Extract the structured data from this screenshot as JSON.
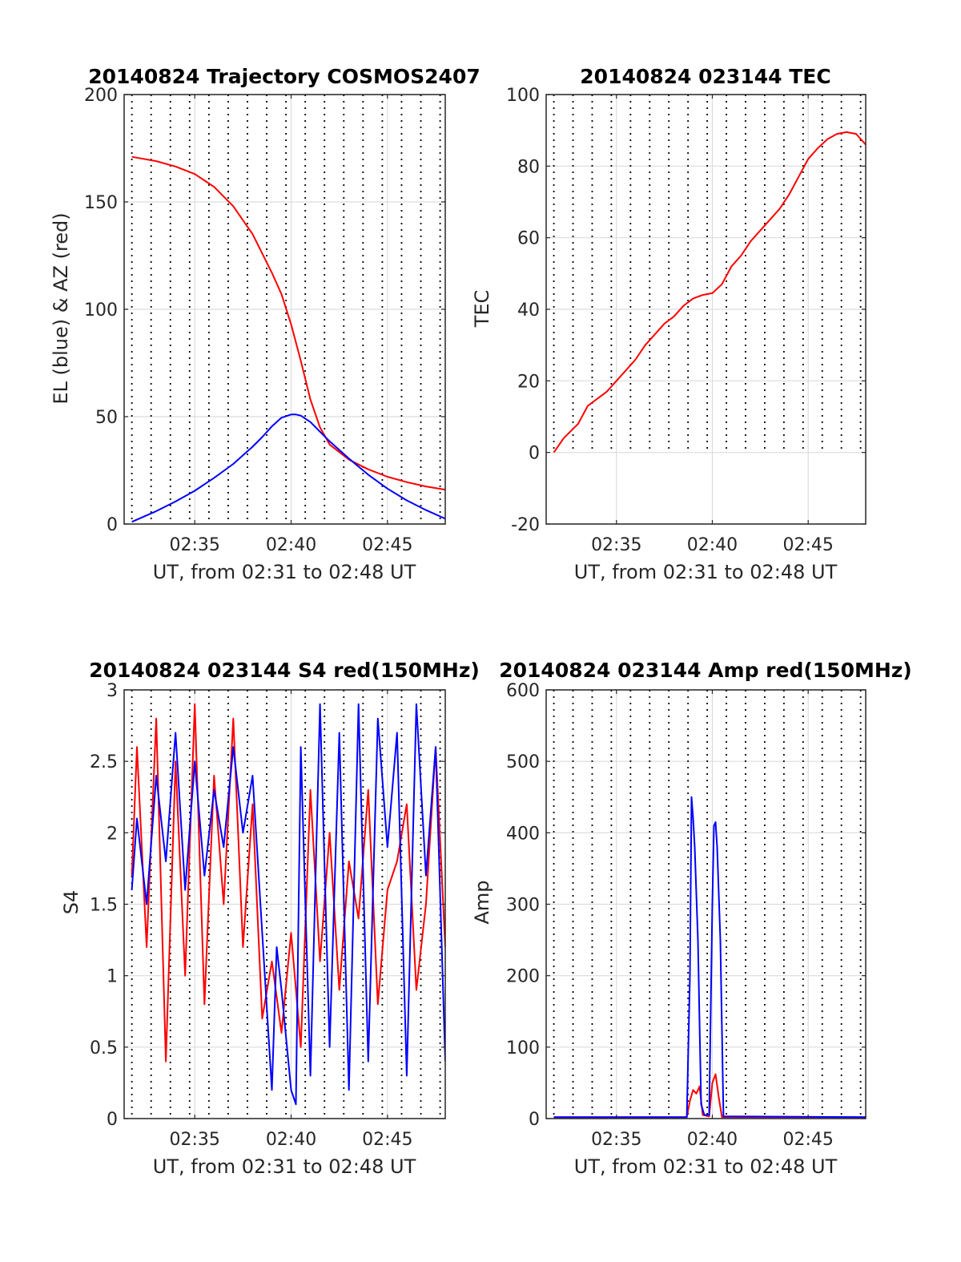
{
  "figure": {
    "background": "#ffffff"
  },
  "chart_data": [
    {
      "id": "trajectory",
      "type": "line",
      "title": "20140824 Trajectory COSMOS2407",
      "xlabel": "UT, from 02:31 to 02:48 UT",
      "ylabel": "EL (blue) & AZ (red)",
      "xlim": [
        "02:31:20",
        "02:48:00"
      ],
      "ylim": [
        0,
        200
      ],
      "yticks": [
        0,
        50,
        100,
        150,
        200
      ],
      "yticklabels": [
        "0",
        "50",
        "100",
        "150",
        "200"
      ],
      "xticks": [
        "02:35",
        "02:40",
        "02:45"
      ],
      "vlines": [
        "02:31:44",
        "02:32:44",
        "02:33:44",
        "02:34:44",
        "02:35:44",
        "02:36:44",
        "02:37:44",
        "02:38:44",
        "02:39:44",
        "02:40:44",
        "02:41:44",
        "02:42:44",
        "02:43:44",
        "02:44:44",
        "02:45:44",
        "02:46:44",
        "02:47:44"
      ],
      "grid": true,
      "series": [
        {
          "color": "#ff0000",
          "x": [
            "02:31:44",
            "02:33:00",
            "02:34:00",
            "02:35:00",
            "02:36:00",
            "02:37:00",
            "02:38:00",
            "02:39:00",
            "02:39:30",
            "02:40:00",
            "02:40:30",
            "02:41:00",
            "02:41:30",
            "02:42:00",
            "02:43:00",
            "02:44:00",
            "02:45:00",
            "02:46:00",
            "02:47:00",
            "02:48:00"
          ],
          "y": [
            171,
            169,
            166.5,
            163,
            157,
            148,
            135,
            117,
            107,
            93,
            76,
            58,
            45,
            37,
            30,
            25.5,
            22,
            19.5,
            17.5,
            16
          ]
        },
        {
          "color": "#0000ff",
          "x": [
            "02:31:44",
            "02:33:00",
            "02:34:00",
            "02:35:00",
            "02:36:00",
            "02:37:00",
            "02:38:00",
            "02:38:30",
            "02:39:00",
            "02:39:30",
            "02:40:00",
            "02:40:15",
            "02:40:30",
            "02:41:00",
            "02:41:30",
            "02:42:00",
            "02:43:00",
            "02:44:00",
            "02:45:00",
            "02:46:00",
            "02:47:00",
            "02:48:00"
          ],
          "y": [
            1,
            6,
            10.5,
            15.5,
            21.5,
            28,
            36,
            40.5,
            45.5,
            49.5,
            51,
            51,
            50.5,
            47.5,
            43,
            38.5,
            30.5,
            23,
            16.5,
            11,
            6.5,
            2.5
          ]
        }
      ]
    },
    {
      "id": "tec",
      "type": "line",
      "title": "20140824 023144 TEC",
      "xlabel": "UT, from 02:31 to 02:48 UT",
      "ylabel": "TEC",
      "xlim": [
        "02:31:20",
        "02:48:00"
      ],
      "ylim": [
        -20,
        100
      ],
      "yticks": [
        -20,
        0,
        20,
        40,
        60,
        80,
        100
      ],
      "yticklabels": [
        "-20",
        "0",
        "20",
        "40",
        "60",
        "80",
        "100"
      ],
      "xticks": [
        "02:35",
        "02:40",
        "02:45"
      ],
      "vlines": [
        "02:31:44",
        "02:32:44",
        "02:33:44",
        "02:34:44",
        "02:35:44",
        "02:36:44",
        "02:37:44",
        "02:38:44",
        "02:39:44",
        "02:40:44",
        "02:41:44",
        "02:42:44",
        "02:43:44",
        "02:44:44",
        "02:45:44",
        "02:46:44",
        "02:47:44"
      ],
      "vline_ymin": 0,
      "grid": true,
      "series": [
        {
          "color": "#ff0000",
          "x": [
            "02:31:44",
            "02:32:15",
            "02:33:00",
            "02:33:30",
            "02:34:00",
            "02:34:30",
            "02:35:00",
            "02:35:30",
            "02:36:00",
            "02:36:30",
            "02:37:00",
            "02:37:30",
            "02:38:00",
            "02:38:30",
            "02:39:00",
            "02:39:30",
            "02:40:00",
            "02:40:30",
            "02:41:00",
            "02:41:30",
            "02:42:00",
            "02:42:30",
            "02:43:00",
            "02:43:30",
            "02:44:00",
            "02:44:30",
            "02:45:00",
            "02:45:30",
            "02:46:00",
            "02:46:30",
            "02:47:00",
            "02:47:30",
            "02:48:00"
          ],
          "y": [
            0,
            4,
            8,
            13,
            15,
            17,
            20,
            23,
            26,
            30,
            33,
            36,
            38,
            41,
            43,
            44,
            44.5,
            47,
            52,
            55,
            59,
            62,
            65,
            68,
            72,
            77,
            82,
            85,
            87.5,
            89,
            89.5,
            89,
            86
          ]
        }
      ]
    },
    {
      "id": "s4",
      "type": "line",
      "title": "20140824 023144 S4 red(150MHz)",
      "xlabel": "UT, from 02:31 to 02:48 UT",
      "ylabel": "S4",
      "xlim": [
        "02:31:20",
        "02:48:00"
      ],
      "ylim": [
        0,
        3
      ],
      "yticks": [
        0,
        0.5,
        1,
        1.5,
        2,
        2.5,
        3
      ],
      "yticklabels": [
        "0",
        "0.5",
        "1",
        "1.5",
        "2",
        "2.5",
        "3"
      ],
      "xticks": [
        "02:35",
        "02:40",
        "02:45"
      ],
      "vlines": [
        "02:31:44",
        "02:32:44",
        "02:33:44",
        "02:34:44",
        "02:35:44",
        "02:36:44",
        "02:37:44",
        "02:38:44",
        "02:39:44",
        "02:40:44",
        "02:41:44",
        "02:42:44",
        "02:43:44",
        "02:44:44",
        "02:45:44",
        "02:46:44",
        "02:47:44"
      ],
      "grid": true,
      "series": [
        {
          "color": "#ff0000",
          "x": [
            "02:31:44",
            "02:32:00",
            "02:32:30",
            "02:33:00",
            "02:33:30",
            "02:34:00",
            "02:34:30",
            "02:35:00",
            "02:35:30",
            "02:36:00",
            "02:36:30",
            "02:37:00",
            "02:37:30",
            "02:38:00",
            "02:38:30",
            "02:39:00",
            "02:39:30",
            "02:40:00",
            "02:40:30",
            "02:41:00",
            "02:41:30",
            "02:42:00",
            "02:42:30",
            "02:43:00",
            "02:43:30",
            "02:44:00",
            "02:44:30",
            "02:45:00",
            "02:45:30",
            "02:46:00",
            "02:46:30",
            "02:47:00",
            "02:47:30",
            "02:48:00"
          ],
          "y": [
            1.7,
            2.6,
            1.2,
            2.8,
            0.4,
            2.5,
            1.0,
            2.9,
            0.8,
            2.4,
            1.5,
            2.8,
            1.2,
            2.2,
            0.7,
            1.1,
            0.6,
            1.3,
            0.5,
            2.3,
            1.1,
            2.0,
            0.9,
            1.8,
            1.4,
            2.3,
            0.8,
            1.6,
            1.8,
            2.2,
            0.9,
            1.5,
            2.6,
            1.2
          ]
        },
        {
          "color": "#0000ff",
          "x": [
            "02:31:44",
            "02:32:00",
            "02:32:30",
            "02:33:00",
            "02:33:30",
            "02:34:00",
            "02:34:30",
            "02:35:00",
            "02:35:30",
            "02:36:00",
            "02:36:30",
            "02:37:00",
            "02:37:30",
            "02:38:00",
            "02:38:30",
            "02:39:00",
            "02:39:15",
            "02:39:30",
            "02:40:00",
            "02:40:15",
            "02:40:30",
            "02:41:00",
            "02:41:30",
            "02:42:00",
            "02:42:30",
            "02:43:00",
            "02:43:30",
            "02:44:00",
            "02:44:30",
            "02:45:00",
            "02:45:30",
            "02:46:00",
            "02:46:30",
            "02:47:00",
            "02:47:30",
            "02:48:00"
          ],
          "y": [
            1.6,
            2.1,
            1.5,
            2.4,
            1.8,
            2.7,
            1.6,
            2.5,
            1.7,
            2.3,
            1.9,
            2.6,
            2.0,
            2.4,
            1.3,
            0.2,
            1.2,
            0.9,
            0.2,
            0.1,
            2.6,
            0.3,
            2.9,
            0.5,
            2.7,
            0.2,
            2.9,
            0.4,
            2.8,
            1.9,
            2.7,
            0.3,
            2.9,
            1.7,
            2.6,
            0.4
          ]
        }
      ]
    },
    {
      "id": "amp",
      "type": "line",
      "title": "20140824 023144 Amp red(150MHz)",
      "xlabel": "UT, from 02:31 to 02:48 UT",
      "ylabel": "Amp",
      "xlim": [
        "02:31:20",
        "02:48:00"
      ],
      "ylim": [
        0,
        600
      ],
      "yticks": [
        0,
        100,
        200,
        300,
        400,
        500,
        600
      ],
      "yticklabels": [
        "0",
        "100",
        "200",
        "300",
        "400",
        "500",
        "600"
      ],
      "xticks": [
        "02:35",
        "02:40",
        "02:45"
      ],
      "vlines": [
        "02:31:44",
        "02:32:44",
        "02:33:44",
        "02:34:44",
        "02:35:44",
        "02:36:44",
        "02:37:44",
        "02:38:44",
        "02:39:44",
        "02:40:44",
        "02:41:44",
        "02:42:44",
        "02:43:44",
        "02:44:44",
        "02:45:44",
        "02:46:44",
        "02:47:44"
      ],
      "grid": true,
      "series": [
        {
          "color": "#ff0000",
          "x": [
            "02:31:44",
            "02:38:40",
            "02:38:50",
            "02:39:00",
            "02:39:10",
            "02:39:20",
            "02:39:30",
            "02:39:50",
            "02:40:00",
            "02:40:10",
            "02:40:20",
            "02:40:30",
            "02:48:00"
          ],
          "y": [
            2,
            2,
            25,
            40,
            35,
            45,
            5,
            3,
            50,
            62,
            30,
            2,
            2
          ]
        },
        {
          "color": "#0000ff",
          "x": [
            "02:31:44",
            "02:38:40",
            "02:38:50",
            "02:38:55",
            "02:39:00",
            "02:39:05",
            "02:39:15",
            "02:39:25",
            "02:39:35",
            "02:39:50",
            "02:40:00",
            "02:40:05",
            "02:40:10",
            "02:40:15",
            "02:40:25",
            "02:40:35",
            "02:48:00"
          ],
          "y": [
            2,
            2,
            200,
            450,
            420,
            380,
            250,
            20,
            5,
            5,
            300,
            410,
            415,
            380,
            250,
            3,
            2
          ]
        }
      ]
    }
  ]
}
